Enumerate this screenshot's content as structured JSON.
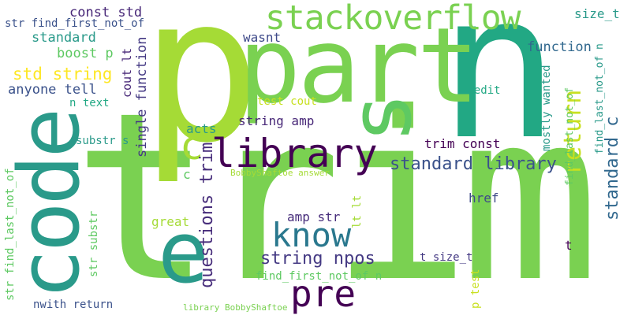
{
  "words": [
    {
      "id": "trim",
      "text": "trim",
      "color": "#7ad151"
    },
    {
      "id": "p",
      "text": "p",
      "color": "#a5db36"
    },
    {
      "id": "n",
      "text": "n",
      "color": "#22a884"
    },
    {
      "id": "part",
      "text": "part",
      "color": "#7ad151"
    },
    {
      "id": "s",
      "text": "s",
      "color": "#5ec962"
    },
    {
      "id": "code",
      "text": "code",
      "color": "#2a9a8a"
    },
    {
      "id": "e",
      "text": "e",
      "color": "#2a9a8a"
    },
    {
      "id": "library",
      "text": "library",
      "color": "#440154"
    },
    {
      "id": "c",
      "text": "c",
      "color": "#a5db36"
    },
    {
      "id": "stackoverflow",
      "text": "stackoverflow",
      "color": "#7ad151"
    },
    {
      "id": "know",
      "text": "know",
      "color": "#2a788e"
    },
    {
      "id": "pre",
      "text": "pre",
      "color": "#440154"
    },
    {
      "id": "return",
      "text": "return",
      "color": "#c8e020"
    },
    {
      "id": "standard-library",
      "text": "standard library",
      "color": "#3b528b"
    },
    {
      "id": "standard-c",
      "text": "standard c",
      "color": "#31688e"
    },
    {
      "id": "string-npos",
      "text": "string npos",
      "color": "#443983"
    },
    {
      "id": "questions-trim",
      "text": "questions trim",
      "color": "#472d7b"
    },
    {
      "id": "std-string",
      "text": "std string",
      "color": "#fde725"
    },
    {
      "id": "const-std",
      "text": "const std",
      "color": "#482878"
    },
    {
      "id": "str-find-first",
      "text": "str find_first_not_of",
      "color": "#3b528b"
    },
    {
      "id": "standard",
      "text": "standard",
      "color": "#2a9a8a"
    },
    {
      "id": "boost-p",
      "text": "boost p",
      "color": "#5ec962"
    },
    {
      "id": "wasnt",
      "text": "wasnt",
      "color": "#3e4989"
    },
    {
      "id": "function",
      "text": "function",
      "color": "#31688e"
    },
    {
      "id": "size-t",
      "text": "size_t",
      "color": "#2a9a8a"
    },
    {
      "id": "anyone-tell",
      "text": "anyone tell",
      "color": "#3b528b"
    },
    {
      "id": "n-text",
      "text": "n text",
      "color": "#22a884"
    },
    {
      "id": "cout-lt",
      "text": "cout lt",
      "color": "#482878"
    },
    {
      "id": "single-function",
      "text": "single function",
      "color": "#443983"
    },
    {
      "id": "test-cout",
      "text": "test cout",
      "color": "#c8e020"
    },
    {
      "id": "string-amp",
      "text": "string amp",
      "color": "#482878"
    },
    {
      "id": "n-edit",
      "text": "n edit",
      "color": "#22a884"
    },
    {
      "id": "find-last-1",
      "text": "find_last_not_of n",
      "color": "#2a9a8a"
    },
    {
      "id": "mostly-wanted",
      "text": "mostly wanted",
      "color": "#2a9a8a"
    },
    {
      "id": "acts",
      "text": "acts",
      "color": "#2a9a8a"
    },
    {
      "id": "substr-s",
      "text": "substr s",
      "color": "#2a9a8a"
    },
    {
      "id": "trim-const",
      "text": "trim const",
      "color": "#440154"
    },
    {
      "id": "find-last-2",
      "text": "find_last_not_of",
      "color": "#5ec962"
    },
    {
      "id": "bobby-answer",
      "text": "BobbyShaftoe answer",
      "color": "#a5db36"
    },
    {
      "id": "c-small",
      "text": "c",
      "color": "#5ec962"
    },
    {
      "id": "href",
      "text": "href",
      "color": "#3e4989"
    },
    {
      "id": "great",
      "text": "great",
      "color": "#a5db36"
    },
    {
      "id": "amp-str",
      "text": "amp str",
      "color": "#472d7b"
    },
    {
      "id": "lt-lt",
      "text": "lt lt",
      "color": "#a5db36"
    },
    {
      "id": "str-find-last",
      "text": "str find_last_not_of",
      "color": "#5ec962"
    },
    {
      "id": "str-substr",
      "text": "str substr",
      "color": "#5ec962"
    },
    {
      "id": "find-first-n",
      "text": "find_first_not_of n",
      "color": "#5ec962"
    },
    {
      "id": "t",
      "text": "t",
      "color": "#440154"
    },
    {
      "id": "t-size-t",
      "text": "t size_t",
      "color": "#443983"
    },
    {
      "id": "p-test",
      "text": "p test",
      "color": "#c8e020"
    },
    {
      "id": "nwith-return",
      "text": "nwith return",
      "color": "#3b528b"
    },
    {
      "id": "library-bobby",
      "text": "library BobbyShaftoe",
      "color": "#7ad151"
    }
  ]
}
